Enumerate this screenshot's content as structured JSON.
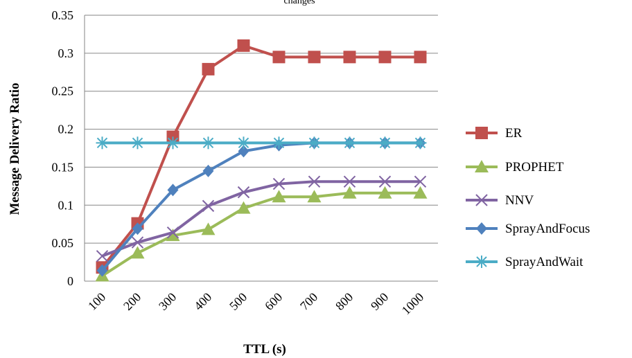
{
  "chart_data": {
    "type": "line",
    "title": "",
    "top_text_fragment": "changes",
    "xlabel": "TTL (s)",
    "ylabel": "Message Delivery Ratio",
    "categories": [
      "100",
      "200",
      "300",
      "400",
      "500",
      "600",
      "700",
      "800",
      "900",
      "1000"
    ],
    "ylim": [
      0,
      0.35
    ],
    "yticks": [
      "0",
      "0.05",
      "0.1",
      "0.15",
      "0.2",
      "0.25",
      "0.3",
      "0.35"
    ],
    "grid": true,
    "legend_position": "right",
    "series": [
      {
        "name": "ER",
        "color": "#c0504d",
        "marker": "square",
        "values": [
          0.018,
          0.076,
          0.19,
          0.279,
          0.31,
          0.295,
          0.295,
          0.295,
          0.295,
          0.295
        ]
      },
      {
        "name": "PROPHET",
        "color": "#9bbb59",
        "marker": "triangle",
        "values": [
          0.007,
          0.037,
          0.06,
          0.068,
          0.096,
          0.111,
          0.111,
          0.116,
          0.116,
          0.116
        ]
      },
      {
        "name": "NNV",
        "color": "#8064a2",
        "marker": "x",
        "values": [
          0.033,
          0.051,
          0.064,
          0.099,
          0.117,
          0.128,
          0.131,
          0.131,
          0.131,
          0.131
        ]
      },
      {
        "name": "SprayAndFocus",
        "color": "#4f81bd",
        "marker": "diamond",
        "values": [
          0.014,
          0.069,
          0.12,
          0.145,
          0.171,
          0.179,
          0.182,
          0.182,
          0.182,
          0.182
        ]
      },
      {
        "name": "SprayAndWait",
        "color": "#4bacc6",
        "marker": "asterisk",
        "values": [
          0.182,
          0.182,
          0.182,
          0.182,
          0.182,
          0.182,
          0.182,
          0.182,
          0.182,
          0.182
        ]
      }
    ]
  }
}
